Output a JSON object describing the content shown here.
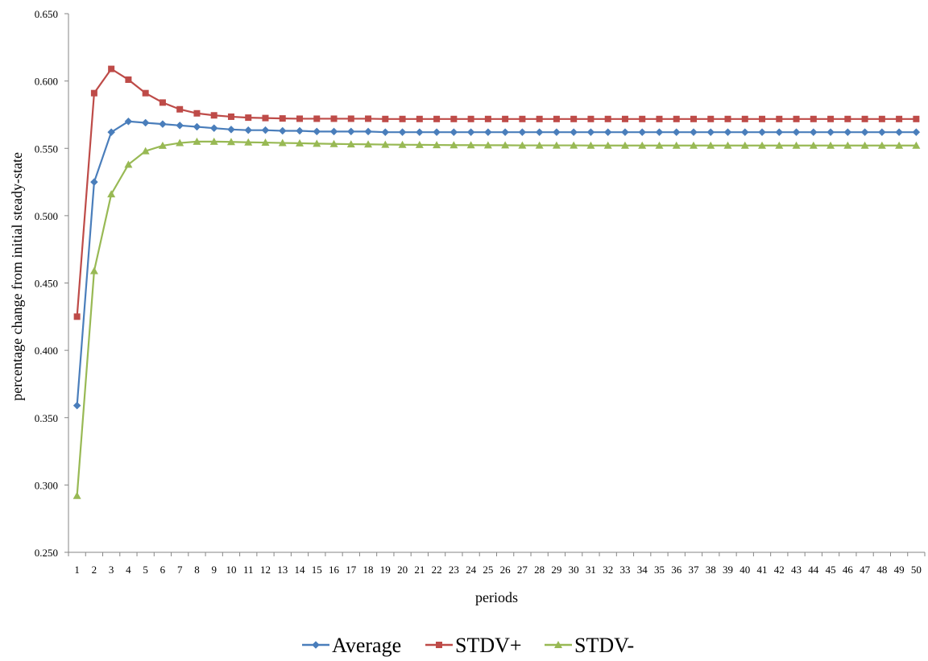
{
  "chart_data": {
    "type": "line",
    "xlabel": "periods",
    "ylabel": "percentage change from initial steady-state",
    "ylim": [
      0.25,
      0.65
    ],
    "ytick_step": 0.05,
    "ytick_labels": [
      "0.250",
      "0.300",
      "0.350",
      "0.400",
      "0.450",
      "0.500",
      "0.550",
      "0.600",
      "0.650"
    ],
    "x": [
      1,
      2,
      3,
      4,
      5,
      6,
      7,
      8,
      9,
      10,
      11,
      12,
      13,
      14,
      15,
      16,
      17,
      18,
      19,
      20,
      21,
      22,
      23,
      24,
      25,
      26,
      27,
      28,
      29,
      30,
      31,
      32,
      33,
      34,
      35,
      36,
      37,
      38,
      39,
      40,
      41,
      42,
      43,
      44,
      45,
      46,
      47,
      48,
      49,
      50
    ],
    "grid": false,
    "legend_position": "bottom",
    "series": [
      {
        "name": "Average",
        "color": "#4a7ebb",
        "marker": "diamond",
        "values": [
          0.359,
          0.525,
          0.562,
          0.57,
          0.569,
          0.568,
          0.567,
          0.566,
          0.565,
          0.564,
          0.5635,
          0.5635,
          0.563,
          0.563,
          0.5625,
          0.5625,
          0.5625,
          0.5625,
          0.562,
          0.562,
          0.562,
          0.562,
          0.562,
          0.562,
          0.562,
          0.562,
          0.562,
          0.562,
          0.562,
          0.562,
          0.562,
          0.562,
          0.562,
          0.562,
          0.562,
          0.562,
          0.562,
          0.562,
          0.562,
          0.562,
          0.562,
          0.562,
          0.562,
          0.562,
          0.562,
          0.562,
          0.562,
          0.562,
          0.562,
          0.562
        ]
      },
      {
        "name": "STDV+",
        "color": "#be4b48",
        "marker": "square",
        "values": [
          0.425,
          0.591,
          0.609,
          0.601,
          0.591,
          0.584,
          0.579,
          0.576,
          0.5745,
          0.5735,
          0.5728,
          0.5725,
          0.5722,
          0.572,
          0.572,
          0.572,
          0.572,
          0.572,
          0.5718,
          0.5718,
          0.5718,
          0.5718,
          0.5718,
          0.5718,
          0.5718,
          0.5718,
          0.5718,
          0.5718,
          0.5718,
          0.5718,
          0.5718,
          0.5718,
          0.5718,
          0.5718,
          0.5718,
          0.5718,
          0.5718,
          0.5718,
          0.5718,
          0.5718,
          0.5718,
          0.5718,
          0.5718,
          0.5718,
          0.5718,
          0.5718,
          0.5718,
          0.5718,
          0.5718,
          0.5718
        ]
      },
      {
        "name": "STDV-",
        "color": "#98b954",
        "marker": "triangle",
        "values": [
          0.292,
          0.459,
          0.516,
          0.538,
          0.548,
          0.552,
          0.554,
          0.555,
          0.555,
          0.5548,
          0.5545,
          0.5543,
          0.554,
          0.5538,
          0.5535,
          0.5533,
          0.5531,
          0.553,
          0.5528,
          0.5527,
          0.5526,
          0.5525,
          0.5524,
          0.5524,
          0.5523,
          0.5523,
          0.5522,
          0.5522,
          0.5522,
          0.5522,
          0.5521,
          0.5521,
          0.5521,
          0.5521,
          0.5521,
          0.5521,
          0.5521,
          0.5521,
          0.5521,
          0.5521,
          0.5521,
          0.5521,
          0.5521,
          0.5521,
          0.5521,
          0.5521,
          0.5521,
          0.5521,
          0.5521,
          0.5521
        ]
      }
    ]
  }
}
